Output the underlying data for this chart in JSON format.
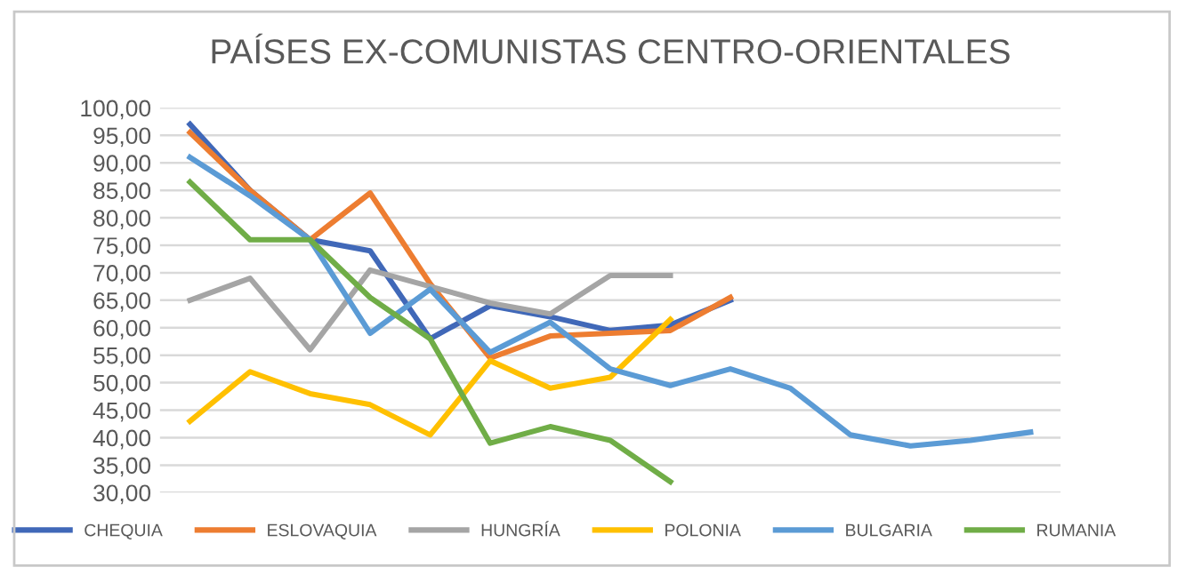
{
  "chart_data": {
    "type": "line",
    "title": "PAÍSES EX-COMUNISTAS CENTRO-ORIENTALES",
    "categories": [
      null,
      null,
      null,
      null,
      null,
      null,
      null,
      null,
      null,
      null,
      null,
      null,
      null,
      null,
      null
    ],
    "series": [
      {
        "name": "CHEQUIA",
        "color": "#4068b8",
        "values": [
          97,
          85,
          76,
          74,
          58,
          64,
          62,
          59.5,
          60.5,
          65,
          null,
          null,
          null,
          null,
          null
        ]
      },
      {
        "name": "ESLOVAQUIA",
        "color": "#ed7d31",
        "values": [
          95.5,
          85,
          76,
          84.5,
          68,
          54.5,
          58.5,
          59,
          59.5,
          65.5,
          null,
          null,
          null,
          null,
          null
        ]
      },
      {
        "name": "HUNGRÍA",
        "color": "#a5a5a5",
        "values": [
          65,
          69,
          56,
          70.5,
          67.5,
          64.5,
          62.5,
          69.5,
          69.5,
          null,
          null,
          null,
          null,
          null,
          null
        ]
      },
      {
        "name": "POLONIA",
        "color": "#ffc000",
        "values": [
          43,
          52,
          48,
          46,
          40.5,
          54,
          49,
          51,
          61.5,
          null,
          null,
          null,
          null,
          null,
          null
        ]
      },
      {
        "name": "BULGARIA",
        "color": "#5b9bd5",
        "values": [
          91,
          84,
          76,
          59,
          67,
          55.5,
          61,
          52.5,
          49.5,
          52.5,
          49,
          40.5,
          38.5,
          39.5,
          41
        ]
      },
      {
        "name": "RUMANIA",
        "color": "#70ad47",
        "values": [
          86.5,
          76,
          76,
          65.5,
          58,
          39,
          42,
          39.5,
          32,
          null,
          null,
          null,
          null,
          null,
          null
        ]
      }
    ],
    "ylim": [
      30,
      100
    ],
    "yticks": [
      {
        "value": 30,
        "label": "30,00"
      },
      {
        "value": 35,
        "label": "35,00"
      },
      {
        "value": 40,
        "label": "40,00"
      },
      {
        "value": 45,
        "label": "45,00"
      },
      {
        "value": 50,
        "label": "50,00"
      },
      {
        "value": 55,
        "label": "55,00"
      },
      {
        "value": 60,
        "label": "60,00"
      },
      {
        "value": 65,
        "label": "65,00"
      },
      {
        "value": 70,
        "label": "70,00"
      },
      {
        "value": 75,
        "label": "75,00"
      },
      {
        "value": 80,
        "label": "80,00"
      },
      {
        "value": 85,
        "label": "85,00"
      },
      {
        "value": 90,
        "label": "90,00"
      },
      {
        "value": 95,
        "label": "95,00"
      },
      {
        "value": 100,
        "label": "100,00"
      }
    ],
    "grid": "y",
    "legend": "bottom",
    "marker": "none",
    "line_style": "solid"
  }
}
